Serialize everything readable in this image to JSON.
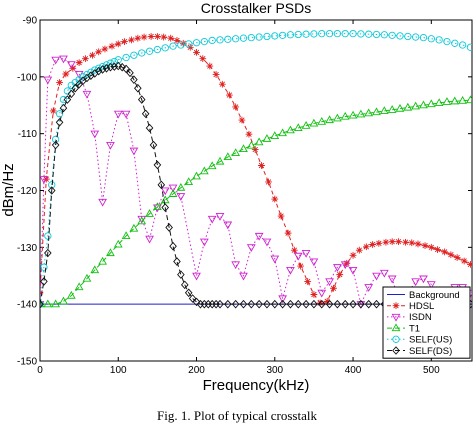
{
  "caption": "Fig. 1.  Plot of typical crosstalk",
  "chart_data": {
    "type": "line",
    "title": "Crosstalker PSDs",
    "xlabel": "Frequency(kHz)",
    "ylabel": "dBm/Hz",
    "xlim": [
      0,
      552
    ],
    "ylim": [
      -150,
      -90
    ],
    "xticks": [
      0,
      100,
      200,
      300,
      400,
      500
    ],
    "yticks": [
      -150,
      -140,
      -130,
      -120,
      -110,
      -100,
      -90
    ],
    "grid": false,
    "legend_position": "bottom-right",
    "series": [
      {
        "name": "Background",
        "color": "#1f1fcc",
        "dash": "",
        "marker": "none",
        "x": [
          0,
          552
        ],
        "y": [
          -140,
          -140
        ]
      },
      {
        "name": "HDSL",
        "color": "#e02020",
        "dash": "4,3",
        "marker": "star",
        "x": [
          0,
          8,
          17,
          25,
          33,
          42,
          50,
          58,
          67,
          75,
          83,
          92,
          100,
          108,
          117,
          125,
          133,
          142,
          150,
          158,
          167,
          175,
          183,
          192,
          200,
          208,
          217,
          225,
          233,
          242,
          250,
          258,
          267,
          275,
          283,
          292,
          300,
          308,
          317,
          325,
          333,
          342,
          350,
          358,
          367,
          375,
          383,
          392,
          400,
          408,
          417,
          425,
          433,
          442,
          450,
          458,
          467,
          475,
          483,
          492,
          500,
          508,
          517,
          525,
          533,
          542,
          550
        ],
        "y": [
          -138,
          -118,
          -106,
          -101,
          -99.5,
          -98.5,
          -97.5,
          -96.8,
          -96.2,
          -95.6,
          -95.1,
          -94.6,
          -94.2,
          -93.8,
          -93.5,
          -93.2,
          -93.0,
          -92.9,
          -92.9,
          -93.0,
          -93.2,
          -93.6,
          -94.1,
          -94.8,
          -95.7,
          -96.8,
          -98.1,
          -99.6,
          -101.3,
          -103.2,
          -105.3,
          -107.6,
          -110.1,
          -112.8,
          -115.6,
          -118.5,
          -121.5,
          -124.5,
          -127.5,
          -130.5,
          -133.3,
          -136.0,
          -138.3,
          -139.8,
          -139.5,
          -137.2,
          -134.8,
          -132.8,
          -131.4,
          -130.5,
          -129.9,
          -129.5,
          -129.3,
          -129.1,
          -129.0,
          -129.0,
          -129.1,
          -129.2,
          -129.4,
          -129.7,
          -130.0,
          -130.4,
          -130.8,
          -131.3,
          -131.8,
          -132.4,
          -133.0
        ]
      },
      {
        "name": "ISDN",
        "color": "#d020d0",
        "dash": "1.5,2.5",
        "marker": "triangle-down",
        "x": [
          0,
          5,
          10,
          20,
          30,
          40,
          50,
          60,
          70,
          80,
          90,
          100,
          110,
          120,
          130,
          140,
          150,
          160,
          170,
          180,
          200,
          210,
          220,
          230,
          240,
          250,
          260,
          270,
          280,
          290,
          300,
          310,
          320,
          330,
          340,
          350,
          360,
          370,
          380,
          390,
          400,
          410,
          420,
          430,
          440,
          450,
          460,
          470,
          480,
          490,
          500,
          510,
          520,
          530,
          540,
          550
        ],
        "y": [
          -140,
          -118,
          -100.5,
          -97.0,
          -96.8,
          -97.8,
          -99.5,
          -103.0,
          -110.0,
          -122.0,
          -112.0,
          -106.5,
          -106.5,
          -113.0,
          -125.0,
          -128.5,
          -123.0,
          -120.0,
          -119.5,
          -121.0,
          -135.0,
          -129.0,
          -125.0,
          -124.5,
          -126.0,
          -133.0,
          -135.0,
          -130.0,
          -128.0,
          -129.0,
          -132.0,
          -139.0,
          -134.0,
          -131.5,
          -131.0,
          -132.5,
          -138.0,
          -136.0,
          -133.5,
          -133.0,
          -134.0,
          -140.0,
          -137.0,
          -135.0,
          -134.5,
          -135.5,
          -140.0,
          -138.0,
          -136.0,
          -135.5,
          -136.5,
          -140.0,
          -138.5,
          -137.0,
          -137.0,
          -138.0
        ]
      },
      {
        "name": "T1",
        "color": "#10c010",
        "dash": "5,3",
        "marker": "triangle-up",
        "x": [
          0,
          10,
          20,
          30,
          40,
          50,
          60,
          70,
          80,
          90,
          100,
          110,
          120,
          130,
          140,
          150,
          160,
          170,
          180,
          190,
          200,
          210,
          220,
          230,
          240,
          250,
          260,
          270,
          280,
          290,
          300,
          310,
          320,
          330,
          340,
          350,
          360,
          370,
          380,
          390,
          400,
          410,
          420,
          430,
          440,
          450,
          460,
          470,
          480,
          490,
          500,
          510,
          520,
          530,
          540,
          550
        ],
        "y": [
          -140,
          -140,
          -140,
          -139.5,
          -138.5,
          -137.0,
          -135.5,
          -134.0,
          -132.5,
          -131.0,
          -129.5,
          -128.0,
          -126.7,
          -125.4,
          -124.1,
          -122.9,
          -121.7,
          -120.6,
          -119.5,
          -118.5,
          -117.5,
          -116.6,
          -115.7,
          -114.9,
          -114.1,
          -113.4,
          -112.7,
          -112.1,
          -111.5,
          -110.9,
          -110.4,
          -109.9,
          -109.4,
          -109.0,
          -108.6,
          -108.2,
          -107.9,
          -107.6,
          -107.3,
          -107.0,
          -106.8,
          -106.6,
          -106.4,
          -106.2,
          -106.0,
          -105.8,
          -105.6,
          -105.4,
          -105.2,
          -105.0,
          -104.8,
          -104.6,
          -104.4,
          -104.3,
          -104.2,
          -104.1
        ]
      },
      {
        "name": "SELF(US)",
        "color": "#10c8d8",
        "dash": "1.5,2.5",
        "marker": "circle",
        "x": [
          0,
          5,
          10,
          15,
          20,
          25,
          30,
          35,
          40,
          45,
          50,
          55,
          60,
          65,
          70,
          75,
          80,
          85,
          90,
          95,
          100,
          110,
          120,
          130,
          140,
          150,
          160,
          170,
          180,
          190,
          200,
          210,
          220,
          230,
          240,
          250,
          260,
          270,
          280,
          290,
          300,
          310,
          320,
          330,
          340,
          350,
          360,
          370,
          380,
          390,
          400,
          410,
          420,
          430,
          440,
          450,
          460,
          470,
          480,
          490,
          500,
          510,
          520,
          530,
          540,
          550
        ],
        "y": [
          -140,
          -133.5,
          -128.0,
          -119.0,
          -111.0,
          -106.5,
          -104.0,
          -102.5,
          -101.5,
          -101.0,
          -100.5,
          -100.0,
          -99.6,
          -99.2,
          -98.8,
          -98.5,
          -98.2,
          -97.9,
          -97.6,
          -97.3,
          -97.0,
          -96.6,
          -96.2,
          -95.8,
          -95.5,
          -95.2,
          -94.9,
          -94.6,
          -94.4,
          -94.2,
          -94.0,
          -93.8,
          -93.6,
          -93.5,
          -93.4,
          -93.3,
          -93.2,
          -93.1,
          -93.0,
          -92.9,
          -92.8,
          -92.7,
          -92.6,
          -92.55,
          -92.5,
          -92.45,
          -92.4,
          -92.4,
          -92.4,
          -92.4,
          -92.4,
          -92.45,
          -92.5,
          -92.55,
          -92.6,
          -92.7,
          -92.8,
          -92.9,
          -93.0,
          -93.1,
          -93.3,
          -93.5,
          -93.8,
          -94.1,
          -94.4,
          -94.8
        ]
      },
      {
        "name": "SELF(DS)",
        "color": "#111111",
        "dash": "5,3",
        "marker": "diamond",
        "x": [
          0,
          5,
          10,
          15,
          20,
          25,
          30,
          35,
          40,
          45,
          50,
          55,
          60,
          65,
          70,
          75,
          80,
          85,
          90,
          95,
          100,
          105,
          110,
          115,
          120,
          125,
          130,
          135,
          140,
          145,
          150,
          155,
          160,
          165,
          170,
          175,
          180,
          185,
          190,
          195,
          200,
          205,
          210,
          215,
          220,
          225,
          230,
          240,
          250,
          260,
          270,
          280,
          290,
          300,
          310,
          320,
          330,
          340,
          350,
          360,
          370,
          380,
          390,
          400,
          410,
          420,
          430,
          440,
          450,
          460,
          470,
          480,
          490,
          500,
          510,
          520,
          530,
          540,
          550
        ],
        "y": [
          -140,
          -136.0,
          -131.0,
          -120.0,
          -112.0,
          -108.0,
          -105.5,
          -104.0,
          -103.0,
          -102.0,
          -101.3,
          -100.7,
          -100.2,
          -99.8,
          -99.4,
          -99.0,
          -98.7,
          -98.5,
          -98.3,
          -98.2,
          -98.1,
          -98.3,
          -98.6,
          -99.3,
          -100.5,
          -102.0,
          -104.0,
          -106.5,
          -109.0,
          -112.0,
          -115.5,
          -119.0,
          -123.0,
          -126.5,
          -129.8,
          -132.5,
          -134.8,
          -136.6,
          -138.0,
          -139.0,
          -139.6,
          -140.0,
          -140.0,
          -140.0,
          -140.0,
          -140.0,
          -140.0,
          -140.0,
          -140.0,
          -140.0,
          -140.0,
          -140.0,
          -140.0,
          -140.0,
          -140.0,
          -140.0,
          -140.0,
          -140.0,
          -140.0,
          -140.0,
          -140.0,
          -140.0,
          -140.0,
          -140.0,
          -140.0,
          -140.0,
          -140.0,
          -140.0,
          -140.0,
          -140.0,
          -140.0,
          -140.0,
          -140.0,
          -140.0,
          -140.0,
          -140.0,
          -140.0,
          -140.0,
          -140.0
        ]
      }
    ]
  }
}
